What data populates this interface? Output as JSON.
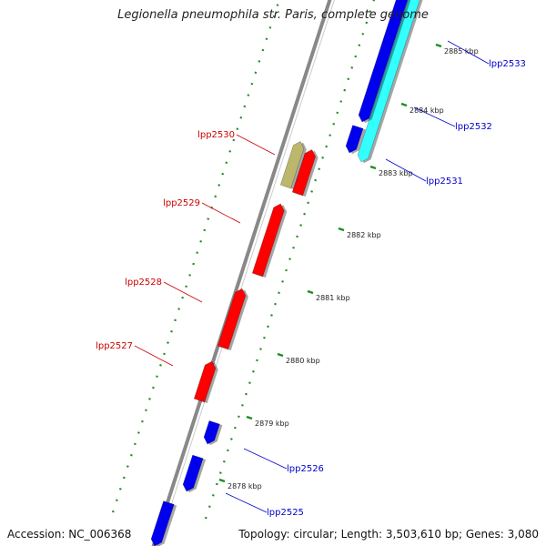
{
  "title": "Legionella pneumophila str. Paris, complete genome",
  "footer": {
    "accession": "Accession: NC_006368",
    "summary": "Topology: circular; Length: 3,503,610 bp; Genes: 3,080"
  },
  "colors": {
    "forward": "#ff0000",
    "reverse": "#0000ee",
    "cyan": "#33ffff",
    "olive": "#bdb76b",
    "backbone": "#888888",
    "dots": "#228b22",
    "label_forward": "#cc0000",
    "label_reverse": "#0000cc"
  },
  "scale_labels": [
    "2878 kbp",
    "2879 kbp",
    "2880 kbp",
    "2881 kbp",
    "2882 kbp",
    "2883 kbp",
    "2884 kbp",
    "2885 kbp"
  ],
  "genes_forward": [
    {
      "label": "lpp2527",
      "color": "#ff0000"
    },
    {
      "label": "lpp2528",
      "color": "#ff0000"
    },
    {
      "label": "lpp2529",
      "color": "#ff0000"
    },
    {
      "label": "lpp2530",
      "color": "#ff0000"
    }
  ],
  "genes_reverse": [
    {
      "label": "lpp2525",
      "color": "#0000ee"
    },
    {
      "label": "lpp2526",
      "color": "#0000ee"
    },
    {
      "label": "lpp2531",
      "color": "#0000ee"
    },
    {
      "label": "lpp2532",
      "color": "#33ffff"
    },
    {
      "label": "lpp2533",
      "color": "#0000ee"
    }
  ]
}
